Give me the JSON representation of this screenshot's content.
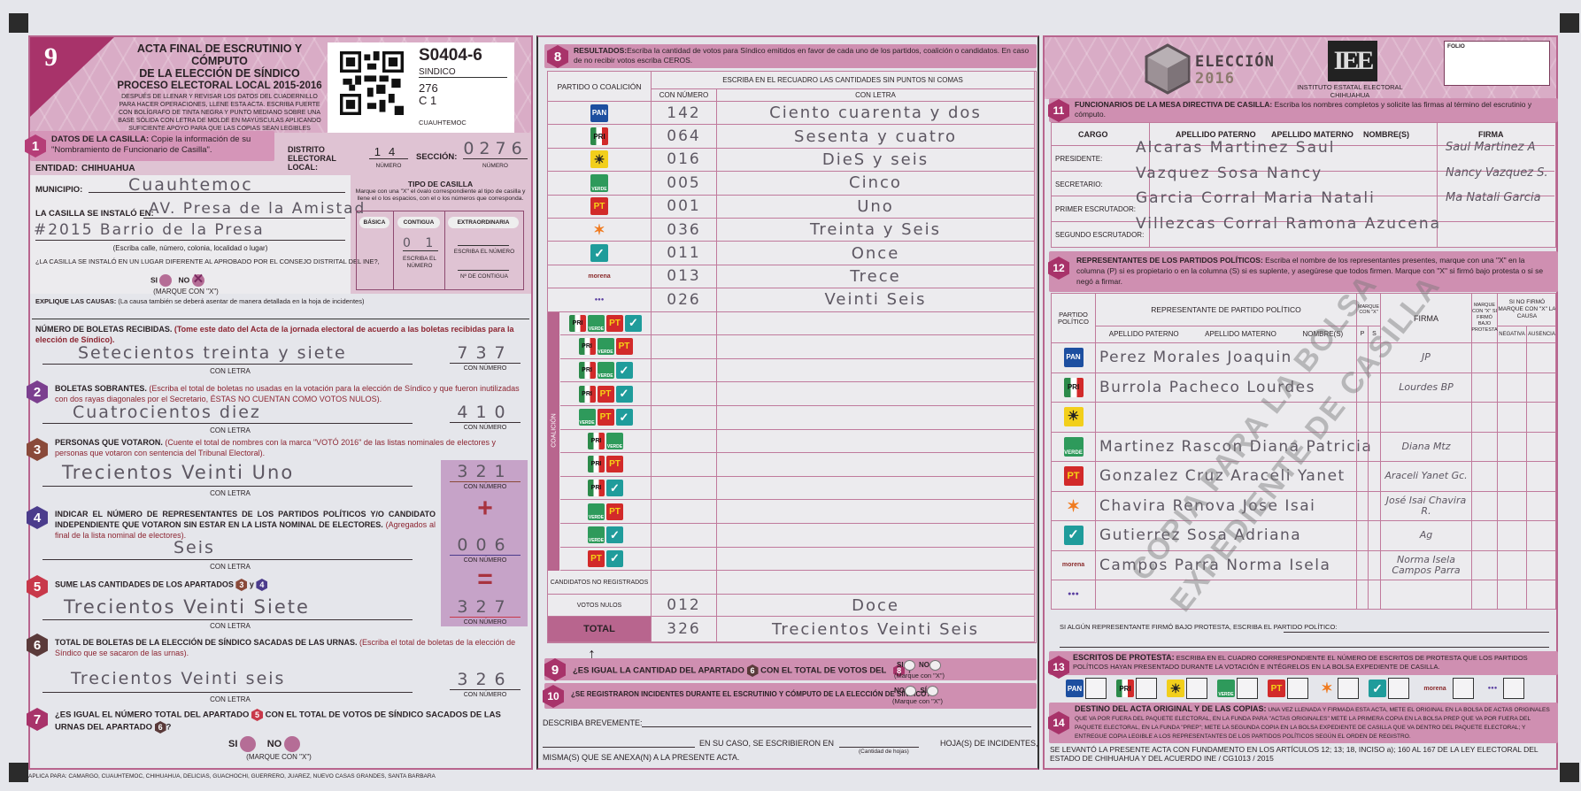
{
  "colors": {
    "frame": "#b8658e",
    "bar": "#cf8fb1",
    "accent": "#a8336a",
    "page": "#e5e6eb"
  },
  "parties": [
    {
      "id": "pan",
      "mark": "PAN",
      "color": "#1d4fa0"
    },
    {
      "id": "pri",
      "mark": "PRI",
      "color": "#2c8a4a"
    },
    {
      "id": "prd",
      "mark": "PRD",
      "color": "#f2cf1b"
    },
    {
      "id": "verde",
      "mark": "VERDE",
      "color": "#2e9a5b"
    },
    {
      "id": "pt",
      "mark": "PT",
      "color": "#d22a2a"
    },
    {
      "id": "mc",
      "mark": "MOVIMIENTO CIUDADANO",
      "color": "#f07b20"
    },
    {
      "id": "na",
      "mark": "alianza",
      "color": "#1f9c9b"
    },
    {
      "id": "morena",
      "mark": "morena",
      "color": "#8a2a2a"
    },
    {
      "id": "es",
      "mark": "encuentro social",
      "color": "#5a3fa0"
    }
  ],
  "header": {
    "form_number": "9",
    "title_line1": "ACTA FINAL DE ESCRUTINIO Y CÓMPUTO",
    "title_line2": "DE LA ELECCIÓN DE SÍNDICO",
    "subtitle": "PROCESO ELECTORAL LOCAL 2015-2016",
    "instructions": "DESPUÉS DE LLENAR Y REVISAR LOS DATOS DEL CUADERNILLO PARA HACER OPERACIONES, LLENE ESTA ACTA. ESCRIBA FUERTE CON BOLÍGRAFO DE TINTA NEGRA Y PUNTO MEDIANO SOBRE UNA BASE SÓLIDA CON LETRA DE MOLDE EN MAYÚSCULAS APLICANDO SUFICIENTE APOYO PARA QUE LAS COPIAS SEAN LEGIBLES"
  },
  "sticker": {
    "code": "S0404-6",
    "type": "SINDICO",
    "seccion": "276",
    "casilla": "C 1",
    "municipio": "CUAUHTEMOC"
  },
  "common": {
    "con_letra": "CON LETRA",
    "con_numero": "CON NÚMERO",
    "numero": "NÚMERO"
  },
  "section1": {
    "num": "1",
    "title": "DATOS DE LA CASILLA:",
    "text": "Copie la información de su \"Nombramiento de Funcionario de Casilla\".",
    "distrito_label": "DISTRITO ELECTORAL LOCAL:",
    "distrito_value": "14",
    "seccion_label": "SECCIÓN:",
    "seccion_value": "0276",
    "entidad_label": "ENTIDAD:",
    "entidad_value": "CHIHUAHUA",
    "municipio_label": "MUNICIPIO:",
    "municipio_value": "Cuauhtemoc",
    "instalo_label": "LA CASILLA SE INSTALÓ EN:",
    "instalo_line1": "AV. Presa de la Amistad",
    "instalo_line2": "#2015   Barrio de la Presa",
    "address_caption": "(Escriba calle, número, colonia, localidad o lugar)",
    "question": "¿LA CASILLA SE INSTALÓ EN UN LUGAR DIFERENTE AL APROBADO POR EL CONSEJO DISTRITAL DEL INE?,",
    "si": "SI",
    "no": "NO",
    "marque": "(MARQUE CON \"X\")",
    "selected": "NO",
    "explique_label": "EXPLIQUE LAS CAUSAS:",
    "explique_note": "(La causa también se deberá asentar de manera detallada en la hoja de incidentes)",
    "tipo": {
      "title": "TIPO DE CASILLA",
      "instr": "Marque con una \"X\" el óvalo correspondiente al tipo de casilla y llene el o los espacios, con el o los números que corresponda.",
      "basica": "BÁSICA",
      "contigua": "CONTIGUA",
      "extraordinaria": "EXTRAORDINARIA",
      "contigua_value": "0 1",
      "escriba_numero": "ESCRIBA EL NÚMERO",
      "no_contigua": "Nº DE CONTIGUA"
    }
  },
  "boletas": {
    "title": "NÚMERO DE BOLETAS RECIBIDAS.",
    "note": "(Tome este dato del Acta de la jornada electoral de acuerdo a las boletas recibidas para la elección de Síndico).",
    "letra": "Setecientos treinta y siete",
    "numero": "737"
  },
  "section2": {
    "num": "2",
    "title": "BOLETAS SOBRANTES.",
    "note": "(Escriba el total de boletas no usadas en la votación para la elección de Síndico y que fueron inutilizadas con dos rayas diagonales por el Secretario, ÉSTAS NO CUENTAN COMO VOTOS NULOS).",
    "letra": "Cuatrocientos diez",
    "numero": "410"
  },
  "section3": {
    "num": "3",
    "title": "PERSONAS QUE VOTARON.",
    "note": "(Cuente el total de nombres con la marca \"VOTÓ 2016\" de las listas nominales de electores y personas que votaron con sentencia del Tribunal Electoral).",
    "letra": "Trecientos Veinti Uno",
    "numero": "321"
  },
  "section4": {
    "num": "4",
    "title": "INDICAR EL NÚMERO DE REPRESENTANTES DE LOS PARTIDOS POLÍTICOS Y/O CANDIDATO INDEPENDIENTE QUE VOTARON SIN ESTAR EN LA LISTA NOMINAL DE ELECTORES.",
    "note": "(Agregados al final de la lista nominal de electores).",
    "letra": "Seis",
    "numero": "006",
    "plus": "+",
    "equals": "="
  },
  "section5": {
    "num": "5",
    "title": "SUME LAS CANTIDADES DE LOS APARTADOS",
    "ref_a": "3",
    "y": "y",
    "ref_b": "4",
    "letra": "Trecientos Veinti Siete",
    "numero": "327"
  },
  "section6": {
    "num": "6",
    "title": "TOTAL DE BOLETAS DE LA ELECCIÓN DE SÍNDICO SACADAS DE LAS URNAS.",
    "note": "(Escriba el total de boletas de la elección de Síndico que se sacaron de las urnas).",
    "letra": "Trecientos Veinti seis",
    "numero": "326"
  },
  "section7": {
    "num": "7",
    "q1": "¿ES IGUAL EL NÚMERO TOTAL DEL APARTADO",
    "ref_a": "5",
    "q2": "CON EL TOTAL DE VOTOS DE SÍNDICO SACADOS DE LAS URNAS DEL APARTADO",
    "ref_b": "6",
    "q3": "?",
    "si": "SI",
    "no": "NO",
    "marque": "(MARQUE CON \"X\")"
  },
  "footer_left": "APLICA PARA:  CAMARGO, CUAUHTEMOC, CHIHUAHUA, DELICIAS, GUACHOCHI, GUERRERO, JUAREZ, NUEVO CASAS GRANDES, SANTA BARBARA",
  "section8": {
    "num": "8",
    "title": "RESULTADOS:",
    "text": "Escriba la cantidad de votos para Síndico emitidos en favor de cada uno de los partidos, coalición o candidatos. En caso de no recibir votos escriba CEROS.",
    "col_partido": "PARTIDO O COALICIÓN",
    "col_escriba": "ESCRIBA EN EL RECUADRO LAS CANTIDADES SIN PUNTOS NI COMAS",
    "col_numero": "CON NÚMERO",
    "col_letra": "CON LETRA",
    "coalicion_label": "COALICIÓN",
    "rows": [
      {
        "party": "pan",
        "numero": "142",
        "letra": "Ciento cuarenta y dos"
      },
      {
        "party": "pri",
        "numero": "064",
        "letra": "Sesenta y cuatro"
      },
      {
        "party": "prd",
        "numero": "016",
        "letra": "DieS y seis"
      },
      {
        "party": "verde",
        "numero": "005",
        "letra": "Cinco"
      },
      {
        "party": "pt",
        "numero": "001",
        "letra": "Uno"
      },
      {
        "party": "mc",
        "numero": "036",
        "letra": "Treinta y Seis"
      },
      {
        "party": "na",
        "numero": "011",
        "letra": "Once"
      },
      {
        "party": "morena",
        "numero": "013",
        "letra": "Trece"
      },
      {
        "party": "es",
        "numero": "026",
        "letra": "Veinti Seis"
      }
    ],
    "coalitions": [
      [
        "pri",
        "verde",
        "pt",
        "na"
      ],
      [
        "pri",
        "verde",
        "pt"
      ],
      [
        "pri",
        "verde",
        "na"
      ],
      [
        "pri",
        "pt",
        "na"
      ],
      [
        "verde",
        "pt",
        "na"
      ],
      [
        "pri",
        "verde"
      ],
      [
        "pri",
        "pt"
      ],
      [
        "pri",
        "na"
      ],
      [
        "verde",
        "pt"
      ],
      [
        "verde",
        "na"
      ],
      [
        "pt",
        "na"
      ]
    ],
    "no_registrados": {
      "label": "CANDIDATOS NO REGISTRADOS",
      "numero": "",
      "letra": ""
    },
    "nulos": {
      "label": "VOTOS  NULOS",
      "numero": "012",
      "letra": "Doce"
    },
    "total": {
      "label": "TOTAL",
      "numero": "326",
      "letra": "Trecientos Veinti Seis"
    }
  },
  "section9": {
    "num": "9",
    "q1": "¿ES IGUAL LA CANTIDAD DEL APARTADO",
    "ref_a": "6",
    "q2": "CON EL TOTAL DE VOTOS DEL",
    "ref_b": "8",
    "q3": "?",
    "si": "SI",
    "no": "NO",
    "marque": "(Marque con \"X\")"
  },
  "section10": {
    "num": "10",
    "question": "¿SE REGISTRARON INCIDENTES DURANTE EL ESCRUTINIO Y CÓMPUTO DE LA ELECCIÓN DE SÍNDICO?",
    "no": "NO",
    "si": "SÍ",
    "marque": "(Marque con \"X\")",
    "describa": "DESCRIBA BREVEMENTE:",
    "en_su_caso": "EN SU CASO, SE ESCRIBIERON EN",
    "cantidad": "(Cantidad de hojas)",
    "hojas": "HOJA(S) DE INCIDENTES,",
    "misma": "MISMA(S) QUE SE ANEXA(N) A LA PRESENTE ACTA."
  },
  "logos": {
    "eleccion_line1": "ELECCIÓN",
    "eleccion_line2": "2016",
    "iee": "IEE",
    "iee_name": "INSTITUTO ESTATAL ELECTORAL",
    "iee_state": "CHIHUAHUA",
    "folio": "FOLIO"
  },
  "section11": {
    "num": "11",
    "title": "FUNCIONARIOS DE LA MESA DIRECTIVA DE CASILLA:",
    "text": "Escriba los nombres completos y solicite las firmas al término del escrutinio y cómputo.",
    "col_cargo": "CARGO",
    "col_paterno": "APELLIDO PATERNO",
    "col_materno": "APELLIDO MATERNO",
    "col_nombre": "NOMBRE(S)",
    "col_firma": "FIRMA",
    "rows": [
      {
        "cargo": "PRESIDENTE:",
        "name": "Alcaras Martinez Saul",
        "firma": "Saul Martinez A"
      },
      {
        "cargo": "SECRETARIO:",
        "name": "Vazquez  Sosa  Nancy",
        "firma": "Nancy Vazquez S."
      },
      {
        "cargo": "PRIMER ESCRUTADOR:",
        "name": "Garcia Corral Maria Natali",
        "firma": "Ma Natali Garcia"
      },
      {
        "cargo": "SEGUNDO ESCRUTADOR:",
        "name": "Villezcas Corral Ramona Azucena",
        "firma": ""
      }
    ]
  },
  "section12": {
    "num": "12",
    "title": "REPRESENTANTES DE LOS PARTIDOS POLÍTICOS:",
    "text": "Escriba el nombre de los representantes presentes, marque con una \"X\" en la columna (P) si es propietario o en la columna (S) si es suplente, y asegúrese que todos firmen. Marque con \"X\" si firmó bajo protesta o si se negó a firmar.",
    "col_partido": "PARTIDO POLÍTICO",
    "col_rep": "REPRESENTANTE DE PARTIDO POLÍTICO",
    "col_paterno": "APELLIDO PATERNO",
    "col_materno": "APELLIDO MATERNO",
    "col_nombre": "NOMBRE(S)",
    "col_marque": "MARQUE CON \"X\"",
    "col_p": "P",
    "col_s": "S",
    "col_firma": "FIRMA",
    "col_protesta": "MARQUE CON \"X\" SI FIRMÓ BAJO PROTESTA",
    "col_nofirmo": "SI NO FIRMÓ MARQUE CON \"X\" LA CAUSA",
    "col_negativa": "NEGATIVA",
    "col_ausencia": "AUSENCIA",
    "rows": [
      {
        "party": "pan",
        "name": "Perez Morales Joaquin",
        "firma": "JP"
      },
      {
        "party": "pri",
        "name": "Burrola Pacheco Lourdes",
        "firma": "Lourdes BP"
      },
      {
        "party": "prd",
        "name": "",
        "firma": ""
      },
      {
        "party": "verde",
        "name": "Martinez Rascon Diana Patricia",
        "firma": "Diana Mtz"
      },
      {
        "party": "pt",
        "name": "Gonzalez Cruz Araceli Yanet",
        "firma": "Araceli Yanet Gc."
      },
      {
        "party": "mc",
        "name": "Chavira Renova Jose Isai",
        "firma": "José Isai Chavira R."
      },
      {
        "party": "na",
        "name": "Gutierrez Sosa Adriana",
        "firma": "Ag"
      },
      {
        "party": "morena",
        "name": "Campos Parra Norma Isela",
        "firma": "Norma Isela Campos Parra"
      },
      {
        "party": "es",
        "name": "",
        "firma": ""
      }
    ],
    "bajo_protesta": "SI ALGÚN REPRESENTANTE FIRMÓ BAJO PROTESTA, ESCRIBA EL PARTIDO POLÍTICO:",
    "watermark_1": "COPIA PARA LA BOLSA",
    "watermark_2": "EXPEDIENTE DE CASILLA"
  },
  "section13": {
    "num": "13",
    "title": "ESCRITOS DE PROTESTA:",
    "text": "ESCRIBA EN EL CUADRO CORRESPONDIENTE EL NÚMERO DE ESCRITOS DE PROTESTA QUE LOS PARTIDOS POLÍTICOS HAYAN PRESENTADO DURANTE LA VOTACIÓN E INTÉGRELOS EN LA BOLSA  EXPEDIENTE DE CASILLA."
  },
  "section14": {
    "num": "14",
    "title": "DESTINO DEL ACTA ORIGINAL Y DE LAS COPIAS:",
    "text": "UNA VEZ LLENADA Y FIRMADA ESTA ACTA, METE EL ORIGINAL EN LA BOLSA DE ACTAS ORIGINALES QUE VA POR FUERA DEL PAQUETE ELECTORAL, EN LA FUNDA PARA \"ACTAS ORIGINALES\" METE LA PRIMERA COPIA EN LA BOLSA PREP QUE VA POR FUERA DEL PAQUETE ELECTORAL, EN LA FUNDA \"PREP\"; METE LA SEGUNDA COPIA EN LA BOLSA EXPEDIENTE DE CASILLA QUE VA DENTRO DEL PAQUETE ELECTORAL; Y ENTREGUE COPIA LEGIBLE A LOS REPRESENTANTES DE LOS PARTIDOS POLÍTICOS SEGÚN EL ORDEN DE REGISTRO.",
    "legal": "SE LEVANTÓ LA PRESENTE ACTA CON FUNDAMENTO EN LOS ARTÍCULOS 12; 13; 18, INCISO a); 160 AL 167 DE LA LEY  ELECTORAL DEL ESTADO DE CHIHUAHUA Y DEL ACUERDO INE / CG1013 / 2015"
  }
}
